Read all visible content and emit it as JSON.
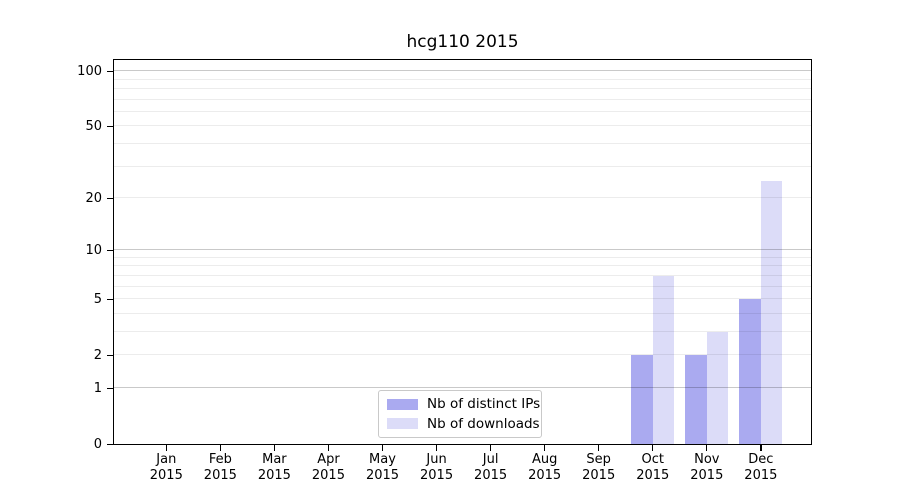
{
  "title": "hcg110 2015",
  "chart_data": {
    "type": "bar",
    "title": "hcg110 2015",
    "categories": [
      "Jan",
      "Feb",
      "Mar",
      "Apr",
      "May",
      "Jun",
      "Jul",
      "Aug",
      "Sep",
      "Oct",
      "Nov",
      "Dec"
    ],
    "x_tick_second_line": "2015",
    "series": [
      {
        "name": "Nb of distinct IPs",
        "color": "#aaaaf0",
        "values": [
          0,
          0,
          0,
          0,
          0,
          0,
          0,
          0,
          0,
          2,
          2,
          5
        ]
      },
      {
        "name": "Nb of downloads",
        "color": "#dcdcf8",
        "values": [
          0,
          0,
          0,
          0,
          0,
          0,
          0,
          0,
          0,
          7,
          3,
          25
        ]
      }
    ],
    "xlabel": "",
    "ylabel": "",
    "y_scale": "log1p",
    "ylim": [
      0,
      115
    ],
    "y_tick_values": [
      0,
      1,
      2,
      5,
      10,
      20,
      50,
      100
    ],
    "y_major_gridlines": [
      1,
      10,
      100
    ],
    "y_minor_gridlines": [
      2,
      3,
      4,
      5,
      6,
      7,
      8,
      9,
      20,
      30,
      40,
      50,
      60,
      70,
      80,
      90
    ],
    "grid": true,
    "legend_position": "lower center"
  },
  "legend": {
    "items": [
      {
        "label": "Nb of distinct IPs",
        "color": "#aaaaf0"
      },
      {
        "label": "Nb of downloads",
        "color": "#dcdcf8"
      }
    ]
  }
}
